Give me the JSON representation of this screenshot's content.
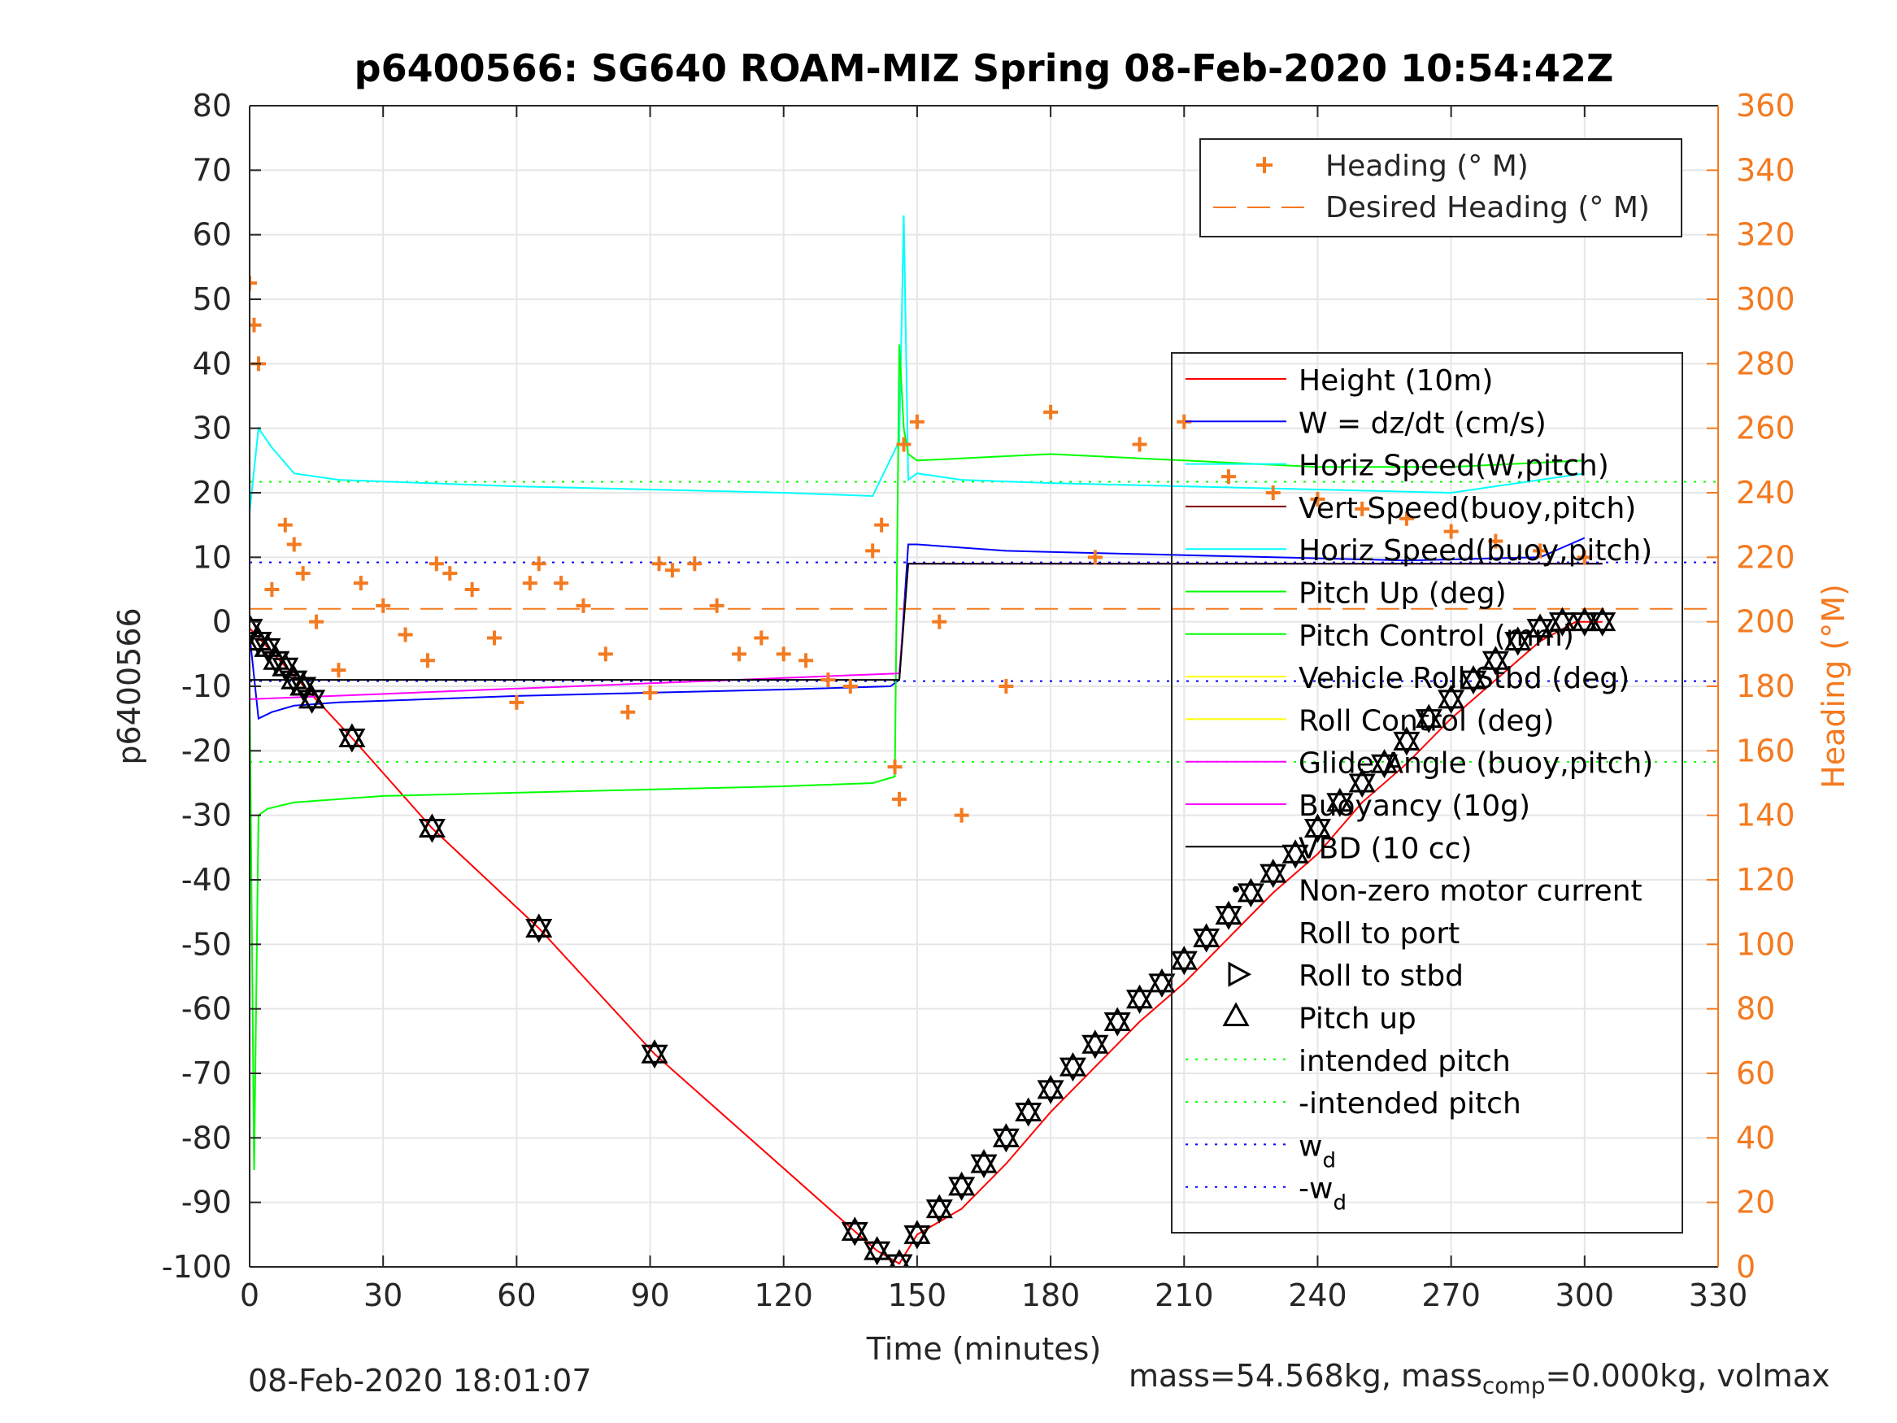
{
  "chart_data": {
    "type": "line",
    "title": "p6400566: SG640 ROAM-MIZ Spring 08-Feb-2020 10:54:42Z",
    "xlabel": "Time (minutes)",
    "ylabel": "p6400566",
    "y2label": "Heading (°M)",
    "xlim": [
      0,
      330
    ],
    "ylim": [
      -100,
      80
    ],
    "y2lim": [
      0,
      360
    ],
    "xticks": [
      "0",
      "30",
      "60",
      "90",
      "120",
      "150",
      "180",
      "210",
      "240",
      "270",
      "300",
      "330"
    ],
    "yticks": [
      "80",
      "70",
      "60",
      "50",
      "40",
      "30",
      "20",
      "10",
      "0",
      "-10",
      "-20",
      "-30",
      "-40",
      "-50",
      "-60",
      "-70",
      "-80",
      "-90",
      "-100"
    ],
    "y2ticks": [
      "360",
      "340",
      "320",
      "300",
      "280",
      "260",
      "240",
      "220",
      "200",
      "180",
      "160",
      "140",
      "120",
      "100",
      "80",
      "60",
      "40",
      "20",
      "0"
    ],
    "grid": true,
    "colors": {
      "height": "#ff0000",
      "w": "#0000ff",
      "horiz_w": "#00ffff",
      "vert_buoy": "#7f0000",
      "horiz_buoy": "#00ffff",
      "pitch_up": "#00ff00",
      "pitch_control": "#00ff00",
      "roll_stbd": "#ffff00",
      "roll_control": "#ffff00",
      "glide": "#ff00ff",
      "buoyancy": "#ff00ff",
      "vbd": "#000000",
      "heading": "#f47a20",
      "wd": "#0000ff",
      "intended": "#00ff00",
      "axis": "#262626",
      "heading_axis": "#f47a20"
    },
    "series": [
      {
        "name": "Height (10m)",
        "x": [
          0,
          23,
          41,
          65,
          91,
          136,
          141,
          146,
          150,
          160,
          170,
          180,
          190,
          200,
          210,
          220,
          230,
          240,
          250,
          260,
          270,
          280,
          290,
          298,
          304
        ],
        "values": [
          -1,
          -18,
          -32,
          -47.5,
          -67,
          -94.5,
          -97.5,
          -99.5,
          -95,
          -91,
          -84,
          -76,
          -69,
          -62,
          -56,
          -49,
          -42,
          -36,
          -28,
          -22,
          -15,
          -9,
          -3,
          0,
          0
        ]
      },
      {
        "name": "W = dz/dt (cm/s)",
        "x": [
          0,
          2,
          5,
          10,
          20,
          40,
          60,
          90,
          120,
          144,
          146,
          148,
          150,
          170,
          200,
          230,
          260,
          290,
          300
        ],
        "values": [
          -2,
          -15,
          -14,
          -13,
          -12.5,
          -12,
          -11.5,
          -11,
          -10.5,
          -10,
          -9,
          12,
          12,
          11,
          10.5,
          10,
          9.5,
          10,
          13
        ]
      },
      {
        "name": "Horiz Speed(W,pitch)",
        "x": [
          0,
          2,
          5,
          10,
          20,
          40,
          60,
          90,
          120,
          140,
          146,
          147,
          148,
          150,
          160,
          180,
          210,
          240,
          270,
          300
        ],
        "values": [
          17,
          30,
          27,
          23,
          22,
          21.5,
          21,
          20.5,
          20,
          19.5,
          28,
          63,
          22,
          23,
          22,
          21.5,
          21,
          20.5,
          20,
          23
        ]
      },
      {
        "name": "Vert Speed(buoy,pitch)",
        "x": [],
        "values": []
      },
      {
        "name": "Horiz Speed(buoy,pitch)",
        "x": [],
        "values": []
      },
      {
        "name": "Pitch Up (deg)",
        "x": [
          0,
          1,
          2,
          4,
          10,
          30,
          60,
          90,
          120,
          140,
          145,
          146,
          147,
          148,
          150,
          180,
          210,
          240,
          270,
          300
        ],
        "values": [
          -10,
          -85,
          -30,
          -29,
          -28,
          -27,
          -26.5,
          -26,
          -25.5,
          -25,
          -24,
          43,
          30,
          26,
          25,
          26,
          25,
          24,
          24,
          25
        ]
      },
      {
        "name": "Pitch Control (mm)",
        "x": [],
        "values": []
      },
      {
        "name": "Vehicle Roll Stbd (deg)",
        "x": [],
        "values": []
      },
      {
        "name": "Roll Control (deg)",
        "x": [],
        "values": []
      },
      {
        "name": "Glide Angle (buoy,pitch)",
        "x": [],
        "values": []
      },
      {
        "name": "Buoyancy (10g)",
        "x": [
          0,
          146,
          148,
          304
        ],
        "values": [
          -12,
          -8,
          9,
          9
        ]
      },
      {
        "name": "VBD (10 cc)",
        "x": [
          0,
          146,
          148,
          304
        ],
        "values": [
          -9,
          -9,
          9,
          9
        ]
      },
      {
        "name": "Heading (° M)",
        "axis": "right",
        "x": [
          0,
          1,
          2,
          5,
          8,
          10,
          12,
          15,
          20,
          25,
          30,
          35,
          40,
          42,
          45,
          50,
          55,
          60,
          63,
          65,
          70,
          75,
          80,
          85,
          90,
          92,
          95,
          100,
          105,
          110,
          115,
          120,
          125,
          130,
          135,
          140,
          142,
          145,
          146,
          147,
          150,
          155,
          160,
          170,
          180,
          190,
          200,
          210,
          220,
          230,
          240,
          250,
          260,
          270,
          280,
          290,
          300
        ],
        "values": [
          305,
          292,
          280,
          210,
          230,
          224,
          215,
          200,
          185,
          212,
          205,
          196,
          188,
          218,
          215,
          210,
          195,
          175,
          212,
          218,
          212,
          205,
          190,
          172,
          178,
          218,
          216,
          218,
          205,
          190,
          195,
          190,
          188,
          182,
          180,
          222,
          230,
          155,
          145,
          255,
          262,
          200,
          140,
          180,
          265,
          220,
          255,
          262,
          245,
          240,
          238,
          235,
          232,
          228,
          225,
          222,
          220
        ]
      }
    ],
    "reference_lines": [
      {
        "name": "intended pitch",
        "value": 21.7
      },
      {
        "name": "-intended pitch",
        "value": -21.7
      },
      {
        "name": "w_d",
        "value": 9.2
      },
      {
        "name": "-w_d",
        "value": -9.2
      },
      {
        "name": "Desired Heading (° M)",
        "axis": "right",
        "value": 204
      }
    ],
    "markers": [
      {
        "name": "Pitch up",
        "x": [
          0,
          2,
          4,
          6,
          8,
          10,
          12,
          14,
          23,
          41,
          65,
          91,
          136,
          141,
          146,
          150,
          155,
          160,
          165,
          170,
          175,
          180,
          185,
          190,
          195,
          200,
          205,
          210,
          215,
          220,
          225,
          230,
          235,
          240,
          245,
          250,
          255,
          260,
          265,
          270,
          275,
          280,
          285,
          290,
          295,
          300,
          304
        ],
        "values": [
          -1,
          -3,
          -4,
          -6,
          -7,
          -9,
          -10,
          -12,
          -18,
          -32,
          -47.5,
          -67,
          -94.5,
          -97.5,
          -99.5,
          -95,
          -91,
          -87.5,
          -84,
          -80,
          -76,
          -72.5,
          -69,
          -65.5,
          -62,
          -58.5,
          -56,
          -52.5,
          -49,
          -45.5,
          -42,
          -39,
          -36,
          -32,
          -28,
          -25,
          -22,
          -18.5,
          -15,
          -12,
          -9,
          -6,
          -3,
          -1,
          0,
          0,
          0
        ]
      }
    ],
    "legend_top": {
      "position": "top-right",
      "entries": [
        "Heading (° M)",
        "Desired Heading (° M)"
      ]
    },
    "legend_main": {
      "position": "right",
      "entries": [
        "Height (10m)",
        "W = dz/dt (cm/s)",
        "Horiz Speed(W,pitch)",
        "Vert Speed(buoy,pitch)",
        "Horiz Speed(buoy,pitch)",
        "Pitch Up (deg)",
        "Pitch Control (mm)",
        "Vehicle Roll Stbd (deg)",
        "Roll Control (deg)",
        "Glide Angle (buoy,pitch)",
        "Buoyancy (10g)",
        "VBD (10 cc)",
        "Non-zero motor current",
        "Roll to port",
        "Roll to stbd",
        "Pitch up",
        "intended pitch",
        "-intended pitch",
        "w",
        "-w"
      ]
    },
    "legend_subscript": "d",
    "footer_left": "08-Feb-2020 18:01:07",
    "footer_right_a": "mass=54.568kg, mass",
    "footer_right_sub": "comp",
    "footer_right_b": "=0.000kg, volmax"
  }
}
